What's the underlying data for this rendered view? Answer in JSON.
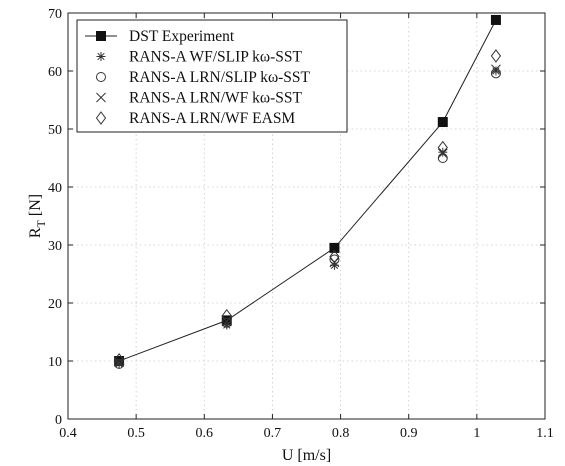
{
  "chart_data": {
    "type": "scatter",
    "title": "",
    "xlabel": "U [m/s]",
    "ylabel_main": "R",
    "ylabel_sub": "T",
    "ylabel_unit": " [N]",
    "xlim": [
      0.4,
      1.1
    ],
    "ylim": [
      0,
      70
    ],
    "x_ticks": [
      0.4,
      0.5,
      0.6,
      0.7,
      0.8,
      0.9,
      1,
      1.1
    ],
    "x_tick_labels": [
      "0.4",
      "0.5",
      "0.6",
      "0.7",
      "0.8",
      "0.9",
      "1",
      "1.1"
    ],
    "y_ticks": [
      0,
      10,
      20,
      30,
      40,
      50,
      60,
      70
    ],
    "y_tick_labels": [
      "0",
      "10",
      "20",
      "30",
      "40",
      "50",
      "60",
      "70"
    ],
    "grid": true,
    "legend_position": "top-left",
    "series": [
      {
        "name": "DST Experiment",
        "marker": "filled-square",
        "line": true,
        "x": [
          0.475,
          0.633,
          0.791,
          0.95,
          1.028
        ],
        "y": [
          10.0,
          17.0,
          29.5,
          51.2,
          68.8
        ]
      },
      {
        "name": "RANS-A WF/SLIP kω-SST",
        "marker": "asterisk",
        "line": false,
        "x": [
          0.475,
          0.633,
          0.791,
          0.95,
          1.028
        ],
        "y": [
          9.5,
          16.2,
          26.5,
          46.0,
          60.0
        ]
      },
      {
        "name": "RANS-A LRN/SLIP kω-SST",
        "marker": "circle",
        "line": false,
        "x": [
          0.475,
          0.633,
          0.791,
          0.95,
          1.028
        ],
        "y": [
          9.5,
          16.6,
          27.5,
          45.0,
          59.6
        ]
      },
      {
        "name": "RANS-A LRN/WF kω-SST",
        "marker": "cross",
        "line": false,
        "x": [
          0.475,
          0.633,
          0.791,
          0.95,
          1.028
        ],
        "y": [
          9.8,
          16.8,
          27.0,
          45.8,
          60.3
        ]
      },
      {
        "name": "RANS-A LRN/WF EASM",
        "marker": "diamond",
        "line": false,
        "x": [
          0.475,
          0.633,
          0.791,
          0.95,
          1.028
        ],
        "y": [
          10.2,
          17.8,
          28.0,
          46.8,
          62.6
        ]
      }
    ]
  }
}
